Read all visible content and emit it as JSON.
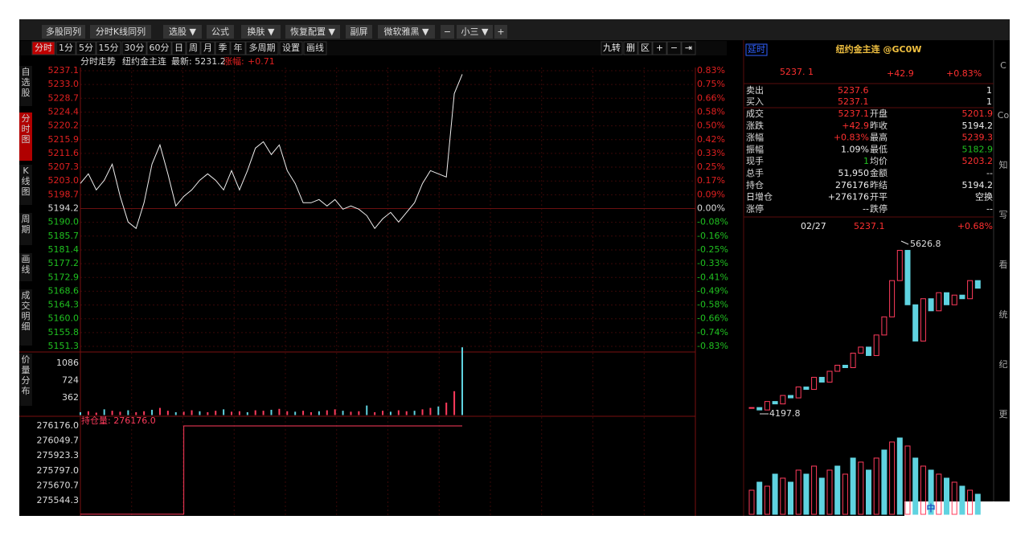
{
  "toolbar": [
    "多股同列",
    "分时K线同列",
    "选股 ▼",
    "公式",
    "换肤 ▼",
    "恢复配置 ▼",
    "副屏",
    "微软雅黑 ▼",
    "−",
    "小三 ▼",
    "+"
  ],
  "sidebar": [
    "自选股",
    "分时图",
    "K线图",
    "周期",
    "画线",
    "成交明细",
    "价量分布"
  ],
  "period_tabs": [
    "分时",
    "1分",
    "5分",
    "15分",
    "30分",
    "60分",
    "日",
    "周",
    "月",
    "季",
    "年",
    "多周期",
    "设置",
    "画线"
  ],
  "tool_tabs": [
    "九转",
    "删",
    "区",
    "+",
    "−",
    "⇥"
  ],
  "header": {
    "title": "分时走势",
    "name": "纽约金主连",
    "latest": "最新: 5231.2",
    "change_label": "涨幅:",
    "change": "+0.71"
  },
  "price_axis": [
    "5237.1",
    "5233.0",
    "5228.7",
    "5224.4",
    "5220.2",
    "5215.9",
    "5211.6",
    "5207.3",
    "5203.0",
    "5198.7",
    "5194.2",
    "5190.0",
    "5185.7",
    "5181.4",
    "5177.2",
    "5172.9",
    "5168.6",
    "5164.3",
    "5160.0",
    "5155.8",
    "5151.3"
  ],
  "pct_axis": [
    "0.83%",
    "0.75%",
    "0.66%",
    "0.58%",
    "0.50%",
    "0.42%",
    "0.33%",
    "0.25%",
    "0.17%",
    "0.09%",
    "0.00%",
    "-0.08%",
    "-0.16%",
    "-0.25%",
    "-0.33%",
    "-0.41%",
    "-0.49%",
    "-0.58%",
    "-0.66%",
    "-0.74%",
    "-0.83%"
  ],
  "price_series": [
    5202,
    5205,
    5200,
    5203,
    5208,
    5198,
    5190,
    5188,
    5196,
    5208,
    5214,
    5205,
    5195,
    5198,
    5200,
    5203,
    5205,
    5203,
    5200,
    5206,
    5200,
    5206,
    5213,
    5215,
    5211,
    5214,
    5206,
    5202,
    5196,
    5196,
    5197,
    5195,
    5197,
    5194,
    5195,
    5194,
    5192,
    5188,
    5191,
    5193,
    5190,
    5193,
    5196,
    5202,
    5206,
    5205,
    5204,
    5230,
    5236
  ],
  "volume_axis": [
    "1086",
    "724",
    "362"
  ],
  "volume_series": [
    60,
    80,
    50,
    120,
    90,
    70,
    100,
    60,
    80,
    110,
    150,
    90,
    60,
    70,
    100,
    80,
    60,
    90,
    120,
    70,
    80,
    60,
    100,
    90,
    110,
    130,
    80,
    70,
    90,
    60,
    80,
    100,
    120,
    90,
    70,
    80,
    200,
    60,
    90,
    70,
    100,
    80,
    90,
    120,
    150,
    180,
    260,
    500,
    1420
  ],
  "oi_label": "持仓量: 276176.0",
  "oi_axis": [
    "276176.0",
    "276049.7",
    "275923.3",
    "275797.0",
    "275670.7",
    "275544.3"
  ],
  "oi_series": [
    275430,
    275430,
    275430,
    275430,
    275430,
    275430,
    275430,
    275430,
    275430,
    275430,
    275430,
    275430,
    275430,
    276176,
    276176,
    276176,
    276176,
    276176,
    276176,
    276176,
    276176,
    276176,
    276176,
    276176,
    276176,
    276176,
    276176,
    276176,
    276176,
    276176,
    276176,
    276176,
    276176,
    276176,
    276176,
    276176,
    276176,
    276176,
    276176,
    276176,
    276176,
    276176,
    276176,
    276176,
    276176,
    276176,
    276176,
    276176,
    276176
  ],
  "quote": {
    "badge": "延时",
    "title": "纽约金主连 @GC0W",
    "price": "5237. 1",
    "change": "+42.9",
    "pct": "+0.83%",
    "book": [
      [
        "卖出",
        "5237.6",
        "1"
      ],
      [
        "买入",
        "5237.1",
        "1"
      ]
    ],
    "rows": [
      [
        "成交",
        "5237.1",
        "开盘",
        "5201.9"
      ],
      [
        "涨跌",
        "+42.9",
        "昨收",
        "5194.2"
      ],
      [
        "涨幅",
        "+0.83%",
        "最高",
        "5239.3"
      ],
      [
        "振幅",
        "1.09%",
        "最低",
        "5182.9"
      ],
      [
        "现手",
        "1",
        "均价",
        "5203.2"
      ],
      [
        "总手",
        "51,950",
        "金额",
        "--"
      ],
      [
        "持仓",
        "276176",
        "昨结",
        "5194.2"
      ],
      [
        "日增仓",
        "+276176",
        "开平",
        "空换"
      ],
      [
        "涨停",
        "--",
        "跌停",
        "--"
      ]
    ],
    "date": "02/27",
    "date_price": "5237.1",
    "date_pct": "+0.68%"
  },
  "kline": {
    "high_label": "5626.8",
    "low_label": "4197.8",
    "closes": [
      4250,
      4230,
      4300,
      4280,
      4350,
      4330,
      4420,
      4400,
      4500,
      4460,
      4550,
      4600,
      4580,
      4700,
      4750,
      4680,
      4850,
      5000,
      5300,
      5550,
      5100,
      4800,
      5150,
      5050,
      5200,
      5100,
      5180,
      5150,
      5300,
      5237.1
    ],
    "volumes": [
      30,
      40,
      35,
      50,
      45,
      40,
      55,
      50,
      60,
      45,
      55,
      60,
      50,
      70,
      65,
      55,
      70,
      80,
      90,
      95,
      85,
      70,
      60,
      55,
      50,
      45,
      40,
      35,
      30,
      25
    ]
  },
  "side_icons": [
    "C",
    "Co",
    "知",
    "写",
    "看",
    "统",
    "纪",
    "更"
  ],
  "ime": "中"
}
